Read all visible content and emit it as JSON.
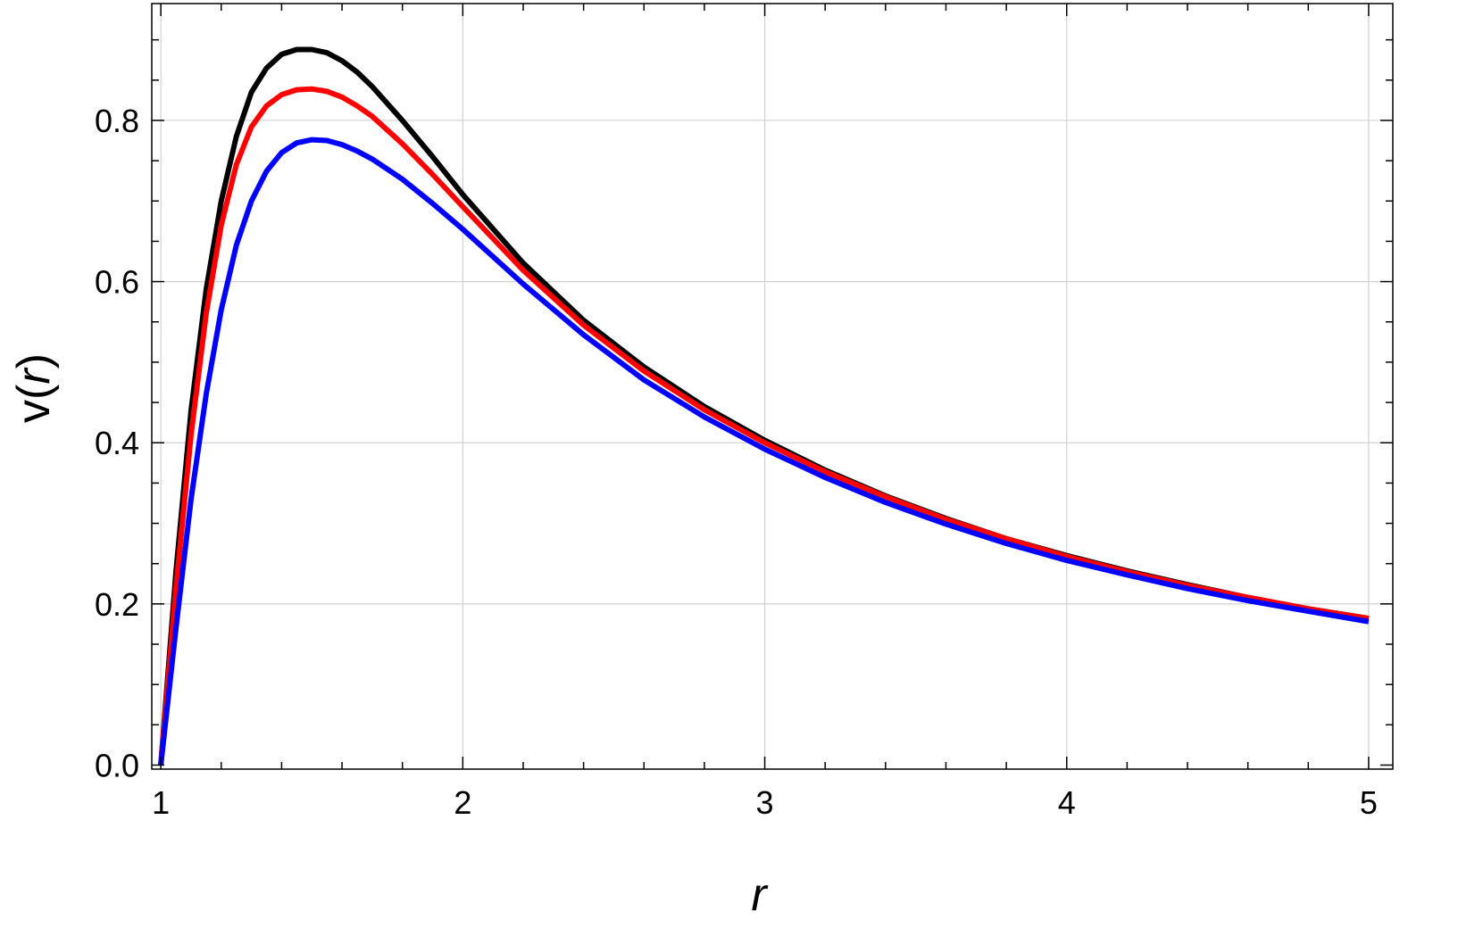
{
  "chart_data": {
    "type": "line",
    "title": "",
    "xlabel": "r",
    "ylabel": "v(r)",
    "ylabel_parts": {
      "prefix": "v(",
      "var": "r",
      "suffix": ")"
    },
    "xlim": [
      0.97,
      5.08
    ],
    "ylim": [
      -0.005,
      0.945
    ],
    "x_ticks": [
      1,
      2,
      3,
      4,
      5
    ],
    "x_tick_labels": [
      "1",
      "2",
      "3",
      "4",
      "5"
    ],
    "y_ticks": [
      0.0,
      0.2,
      0.4,
      0.6,
      0.8
    ],
    "y_tick_labels": [
      "0.0",
      "0.2",
      "0.4",
      "0.6",
      "0.8"
    ],
    "x_minor_step": 0.2,
    "y_minor_step": 0.05,
    "grid": true,
    "legend": "none",
    "series": [
      {
        "color": "#000000",
        "x": [
          1.0,
          1.05,
          1.1,
          1.15,
          1.2,
          1.25,
          1.3,
          1.35,
          1.4,
          1.45,
          1.5,
          1.55,
          1.6,
          1.65,
          1.7,
          1.8,
          1.9,
          2.0,
          2.2,
          2.4,
          2.6,
          2.8,
          3.0,
          3.2,
          3.4,
          3.6,
          3.8,
          4.0,
          4.2,
          4.4,
          4.6,
          4.8,
          5.0
        ],
        "y": [
          0.0,
          0.24,
          0.44,
          0.59,
          0.7,
          0.78,
          0.835,
          0.865,
          0.882,
          0.888,
          0.888,
          0.884,
          0.874,
          0.86,
          0.842,
          0.8,
          0.755,
          0.708,
          0.623,
          0.552,
          0.494,
          0.445,
          0.403,
          0.366,
          0.334,
          0.306,
          0.281,
          0.26,
          0.241,
          0.224,
          0.208,
          0.194,
          0.182
        ]
      },
      {
        "color": "#ff0000",
        "x": [
          1.0,
          1.05,
          1.1,
          1.15,
          1.2,
          1.25,
          1.3,
          1.35,
          1.4,
          1.45,
          1.5,
          1.55,
          1.6,
          1.65,
          1.7,
          1.8,
          1.9,
          2.0,
          2.2,
          2.4,
          2.6,
          2.8,
          3.0,
          3.2,
          3.4,
          3.6,
          3.8,
          4.0,
          4.2,
          4.4,
          4.6,
          4.8,
          5.0
        ],
        "y": [
          0.0,
          0.22,
          0.41,
          0.56,
          0.67,
          0.745,
          0.792,
          0.818,
          0.832,
          0.838,
          0.839,
          0.836,
          0.829,
          0.818,
          0.805,
          0.771,
          0.733,
          0.693,
          0.614,
          0.546,
          0.489,
          0.441,
          0.4,
          0.364,
          0.333,
          0.305,
          0.281,
          0.259,
          0.24,
          0.223,
          0.208,
          0.194,
          0.182
        ]
      },
      {
        "color": "#0000ff",
        "x": [
          1.0,
          1.05,
          1.1,
          1.15,
          1.2,
          1.25,
          1.3,
          1.35,
          1.4,
          1.45,
          1.5,
          1.55,
          1.6,
          1.65,
          1.7,
          1.8,
          1.9,
          2.0,
          2.2,
          2.4,
          2.6,
          2.8,
          3.0,
          3.2,
          3.4,
          3.6,
          3.8,
          4.0,
          4.2,
          4.4,
          4.6,
          4.8,
          5.0
        ],
        "y": [
          0.0,
          0.17,
          0.33,
          0.46,
          0.565,
          0.645,
          0.7,
          0.737,
          0.76,
          0.772,
          0.776,
          0.775,
          0.77,
          0.762,
          0.752,
          0.727,
          0.697,
          0.665,
          0.597,
          0.534,
          0.478,
          0.432,
          0.392,
          0.357,
          0.326,
          0.299,
          0.275,
          0.254,
          0.236,
          0.219,
          0.204,
          0.191,
          0.178
        ]
      }
    ]
  }
}
